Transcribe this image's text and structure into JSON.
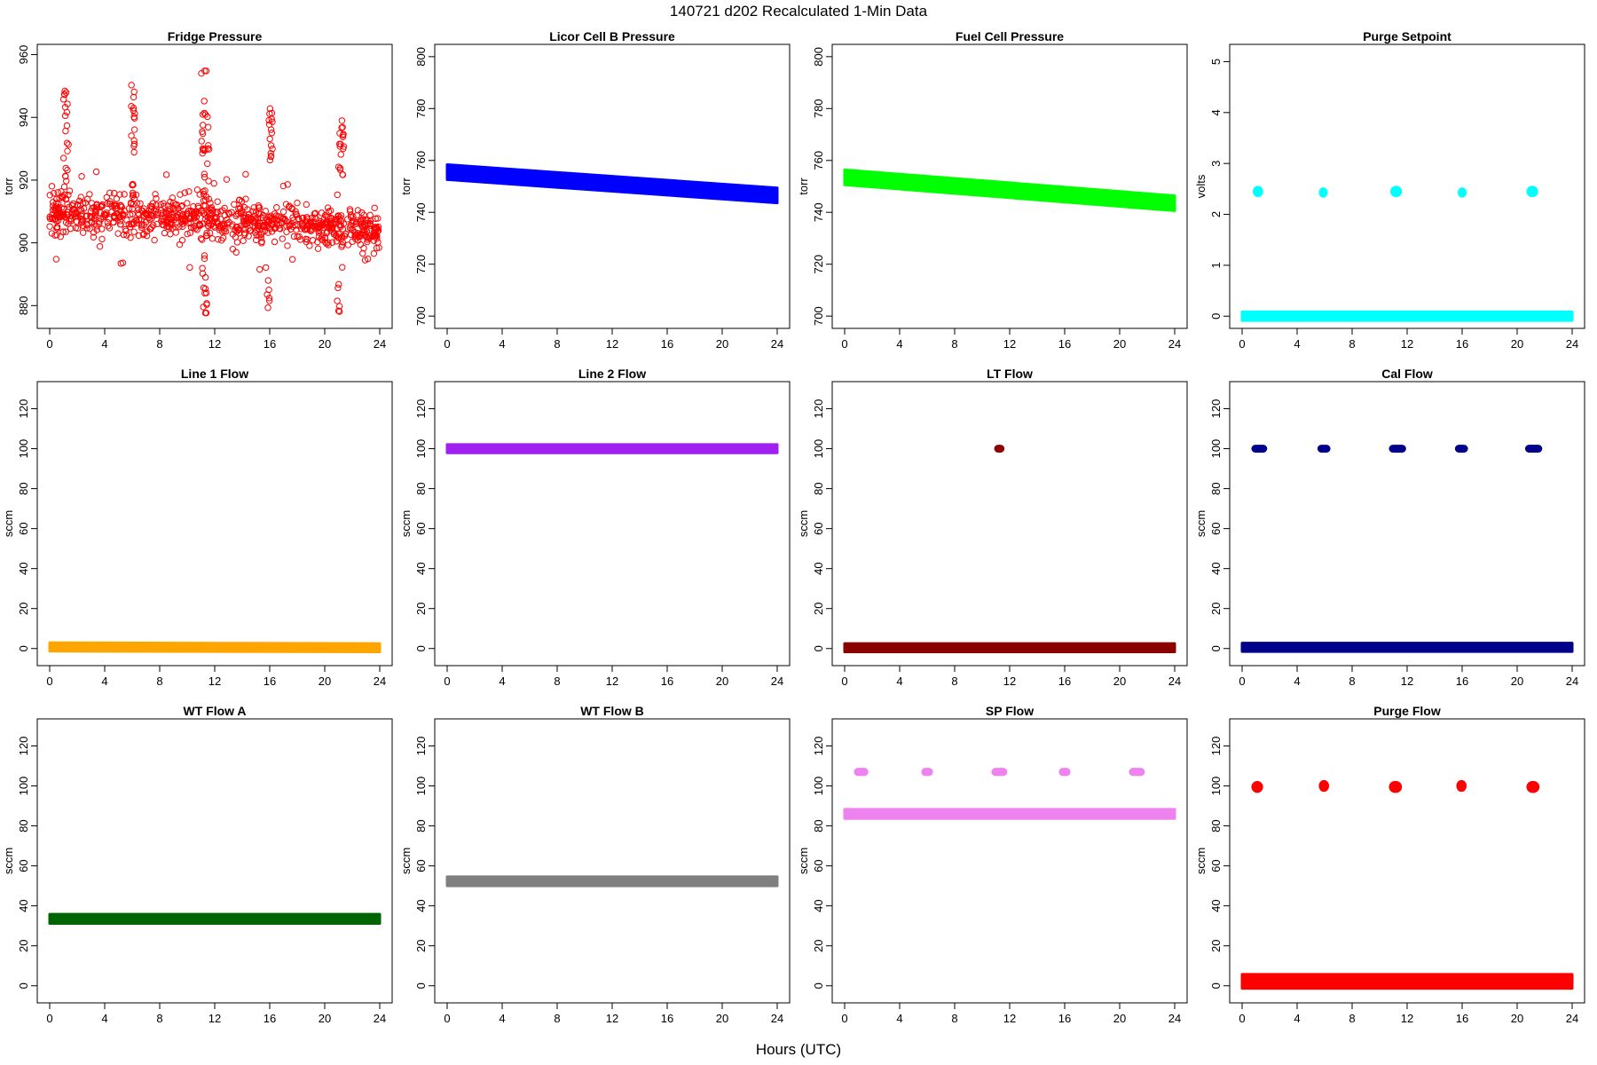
{
  "figure": {
    "title": "140721   d202   Recalculated 1-Min Data",
    "xlabel": "Hours (UTC)"
  },
  "chart_data": [
    {
      "type": "scatter",
      "title": "Fridge Pressure",
      "ylabel": "torr",
      "color": "#ff0000",
      "marker": "open-circle",
      "xlim": [
        0,
        24
      ],
      "ylim": [
        875,
        961
      ],
      "xticks": [
        "0",
        "4",
        "8",
        "12",
        "16",
        "20",
        "24"
      ],
      "yticks": [
        "880",
        "900",
        "920",
        "940",
        "960"
      ],
      "series": [
        {
          "kind": "band",
          "x0": 0,
          "x1": 24,
          "y0": 910,
          "y1": 904,
          "spread": 9,
          "outliers_spread": 16,
          "seed": 11
        },
        {
          "kind": "spike",
          "x": 1.0,
          "x1": 1.4,
          "y0": 908,
          "y1": 950,
          "n": 26,
          "seed": 3
        },
        {
          "kind": "spike",
          "x": 5.9,
          "x1": 6.2,
          "y0": 910,
          "y1": 951,
          "n": 22,
          "seed": 5
        },
        {
          "kind": "spike",
          "x": 11.0,
          "x1": 11.6,
          "y0": 908,
          "y1": 957,
          "n": 34,
          "seed": 7
        },
        {
          "kind": "spike",
          "x": 11.1,
          "x1": 11.5,
          "y0": 875,
          "y1": 898,
          "n": 14,
          "seed": 8
        },
        {
          "kind": "spike",
          "x": 15.9,
          "x1": 16.2,
          "y0": 925,
          "y1": 943,
          "n": 16,
          "seed": 9
        },
        {
          "kind": "spike",
          "x": 15.8,
          "x1": 16.0,
          "y0": 879,
          "y1": 888,
          "n": 6,
          "seed": 10
        },
        {
          "kind": "spike",
          "x": 21.0,
          "x1": 21.4,
          "y0": 920,
          "y1": 939,
          "n": 18,
          "seed": 12
        },
        {
          "kind": "spike",
          "x": 20.9,
          "x1": 21.1,
          "y0": 877,
          "y1": 888,
          "n": 6,
          "seed": 13
        }
      ]
    },
    {
      "type": "scatter",
      "title": "Licor Cell B Pressure",
      "ylabel": "torr",
      "color": "#0000ff",
      "marker": "filled",
      "xlim": [
        0,
        24
      ],
      "ylim": [
        698,
        802
      ],
      "xticks": [
        "0",
        "4",
        "8",
        "12",
        "16",
        "20",
        "24"
      ],
      "yticks": [
        "700",
        "720",
        "740",
        "760",
        "780",
        "800"
      ],
      "series": [
        {
          "kind": "line",
          "x0": 0,
          "x1": 24,
          "y0": 755.5,
          "y1": 746.5,
          "width": 2.2
        }
      ]
    },
    {
      "type": "scatter",
      "title": "Fuel Cell Pressure",
      "ylabel": "torr",
      "color": "#00ff00",
      "marker": "filled",
      "xlim": [
        0,
        24
      ],
      "ylim": [
        698,
        802
      ],
      "xticks": [
        "0",
        "4",
        "8",
        "12",
        "16",
        "20",
        "24"
      ],
      "yticks": [
        "700",
        "720",
        "740",
        "760",
        "780",
        "800"
      ],
      "series": [
        {
          "kind": "line",
          "x0": 0,
          "x1": 24,
          "y0": 753.5,
          "y1": 743.5,
          "width": 2.2
        }
      ]
    },
    {
      "type": "scatter",
      "title": "Purge Setpoint",
      "ylabel": "volts",
      "color": "#00ffff",
      "marker": "filled",
      "xlim": [
        0,
        24
      ],
      "ylim": [
        -0.1,
        5.2
      ],
      "xticks": [
        "0",
        "4",
        "8",
        "12",
        "16",
        "20",
        "24"
      ],
      "yticks": [
        "0",
        "1",
        "2",
        "3",
        "4",
        "5"
      ],
      "series": [
        {
          "kind": "line",
          "x0": 0,
          "x1": 24,
          "y0": 0.0,
          "y1": 0.0,
          "width": 0.05
        },
        {
          "kind": "cluster",
          "x": 1.0,
          "x1": 1.3,
          "y": 2.45,
          "h": 0.05
        },
        {
          "kind": "cluster",
          "x": 5.8,
          "x1": 6.0,
          "y": 2.43,
          "h": 0.04
        },
        {
          "kind": "cluster",
          "x": 11.0,
          "x1": 11.4,
          "y": 2.45,
          "h": 0.05
        },
        {
          "kind": "cluster",
          "x": 15.9,
          "x1": 16.1,
          "y": 2.43,
          "h": 0.04
        },
        {
          "kind": "cluster",
          "x": 20.9,
          "x1": 21.3,
          "y": 2.45,
          "h": 0.05
        }
      ]
    },
    {
      "type": "scatter",
      "title": "Line 1 Flow",
      "ylabel": "sccm",
      "color": "#ffa500",
      "marker": "filled",
      "xlim": [
        0,
        24
      ],
      "ylim": [
        -5,
        130
      ],
      "xticks": [
        "0",
        "4",
        "8",
        "12",
        "16",
        "20",
        "24"
      ],
      "yticks": [
        "0",
        "20",
        "40",
        "60",
        "80",
        "100",
        "120"
      ],
      "series": [
        {
          "kind": "line",
          "x0": 0,
          "x1": 24,
          "y0": 0.8,
          "y1": 0.4,
          "width": 1.2
        }
      ]
    },
    {
      "type": "scatter",
      "title": "Line 2 Flow",
      "ylabel": "sccm",
      "color": "#a020f0",
      "marker": "filled",
      "xlim": [
        0,
        24
      ],
      "ylim": [
        -5,
        130
      ],
      "xticks": [
        "0",
        "4",
        "8",
        "12",
        "16",
        "20",
        "24"
      ],
      "yticks": [
        "0",
        "20",
        "40",
        "60",
        "80",
        "100",
        "120"
      ],
      "series": [
        {
          "kind": "line",
          "x0": 0,
          "x1": 24,
          "y0": 100,
          "y1": 100,
          "width": 1.2
        }
      ]
    },
    {
      "type": "scatter",
      "title": "LT Flow",
      "ylabel": "sccm",
      "color": "#8b0000",
      "marker": "filled",
      "xlim": [
        0,
        24
      ],
      "ylim": [
        -5,
        130
      ],
      "xticks": [
        "0",
        "4",
        "8",
        "12",
        "16",
        "20",
        "24"
      ],
      "yticks": [
        "0",
        "20",
        "40",
        "60",
        "80",
        "100",
        "120"
      ],
      "series": [
        {
          "kind": "line",
          "x0": 0,
          "x1": 24,
          "y0": 0.4,
          "y1": 0.4,
          "width": 1.2
        },
        {
          "kind": "cluster",
          "x": 11.1,
          "x1": 11.4,
          "y": 100,
          "h": 0.4
        }
      ]
    },
    {
      "type": "scatter",
      "title": "Cal Flow",
      "ylabel": "sccm",
      "color": "#00008b",
      "marker": "filled",
      "xlim": [
        0,
        24
      ],
      "ylim": [
        -5,
        130
      ],
      "xticks": [
        "0",
        "4",
        "8",
        "12",
        "16",
        "20",
        "24"
      ],
      "yticks": [
        "0",
        "20",
        "40",
        "60",
        "80",
        "100",
        "120"
      ],
      "series": [
        {
          "kind": "line",
          "x0": 0,
          "x1": 24,
          "y0": 0.6,
          "y1": 0.6,
          "width": 1.2
        },
        {
          "kind": "cluster",
          "x": 0.9,
          "x1": 1.6,
          "y": 100,
          "h": 0.4
        },
        {
          "kind": "cluster",
          "x": 5.7,
          "x1": 6.2,
          "y": 100,
          "h": 0.4
        },
        {
          "kind": "cluster",
          "x": 10.9,
          "x1": 11.7,
          "y": 100,
          "h": 0.4
        },
        {
          "kind": "cluster",
          "x": 15.7,
          "x1": 16.2,
          "y": 100,
          "h": 0.4
        },
        {
          "kind": "cluster",
          "x": 20.8,
          "x1": 21.6,
          "y": 100,
          "h": 0.4
        }
      ]
    },
    {
      "type": "scatter",
      "title": "WT Flow A",
      "ylabel": "sccm",
      "color": "#006400",
      "marker": "filled",
      "xlim": [
        0,
        24
      ],
      "ylim": [
        -5,
        130
      ],
      "xticks": [
        "0",
        "4",
        "8",
        "12",
        "16",
        "20",
        "24"
      ],
      "yticks": [
        "0",
        "20",
        "40",
        "60",
        "80",
        "100",
        "120"
      ],
      "series": [
        {
          "kind": "line",
          "x0": 0,
          "x1": 24,
          "y0": 33.5,
          "y1": 33.5,
          "width": 1.4
        }
      ]
    },
    {
      "type": "scatter",
      "title": "WT Flow B",
      "ylabel": "sccm",
      "color": "#808080",
      "marker": "filled",
      "xlim": [
        0,
        24
      ],
      "ylim": [
        -5,
        130
      ],
      "xticks": [
        "0",
        "4",
        "8",
        "12",
        "16",
        "20",
        "24"
      ],
      "yticks": [
        "0",
        "20",
        "40",
        "60",
        "80",
        "100",
        "120"
      ],
      "series": [
        {
          "kind": "line",
          "x0": 0,
          "x1": 24,
          "y0": 52.3,
          "y1": 52.3,
          "width": 1.4
        }
      ]
    },
    {
      "type": "scatter",
      "title": "SP Flow",
      "ylabel": "sccm",
      "color": "#ee82ee",
      "marker": "filled",
      "xlim": [
        0,
        24
      ],
      "ylim": [
        -5,
        130
      ],
      "xticks": [
        "0",
        "4",
        "8",
        "12",
        "16",
        "20",
        "24"
      ],
      "yticks": [
        "0",
        "20",
        "40",
        "60",
        "80",
        "100",
        "120"
      ],
      "series": [
        {
          "kind": "line",
          "x0": 0,
          "x1": 24,
          "y0": 86,
          "y1": 86,
          "width": 1.4
        },
        {
          "kind": "cluster",
          "x": 0.9,
          "x1": 1.5,
          "y": 107,
          "h": 0.5
        },
        {
          "kind": "cluster",
          "x": 5.8,
          "x1": 6.2,
          "y": 107,
          "h": 0.5
        },
        {
          "kind": "cluster",
          "x": 10.9,
          "x1": 11.6,
          "y": 107,
          "h": 0.5
        },
        {
          "kind": "cluster",
          "x": 15.8,
          "x1": 16.2,
          "y": 107,
          "h": 0.5
        },
        {
          "kind": "cluster",
          "x": 20.9,
          "x1": 21.6,
          "y": 107,
          "h": 0.5
        }
      ]
    },
    {
      "type": "scatter",
      "title": "Purge Flow",
      "ylabel": "sccm",
      "color": "#ff0000",
      "marker": "filled",
      "xlim": [
        0,
        24
      ],
      "ylim": [
        -5,
        130
      ],
      "xticks": [
        "0",
        "4",
        "8",
        "12",
        "16",
        "20",
        "24"
      ],
      "yticks": [
        "0",
        "20",
        "40",
        "60",
        "80",
        "100",
        "120"
      ],
      "series": [
        {
          "kind": "line",
          "x0": 0,
          "x1": 24,
          "y0": 2.2,
          "y1": 2.2,
          "width": 2.6
        },
        {
          "kind": "cluster",
          "x": 0.9,
          "x1": 1.3,
          "y": 99.5,
          "h": 1.4
        },
        {
          "kind": "cluster",
          "x": 5.8,
          "x1": 6.1,
          "y": 100,
          "h": 1.4
        },
        {
          "kind": "cluster",
          "x": 10.9,
          "x1": 11.4,
          "y": 99.5,
          "h": 1.4
        },
        {
          "kind": "cluster",
          "x": 15.8,
          "x1": 16.1,
          "y": 100,
          "h": 1.4
        },
        {
          "kind": "cluster",
          "x": 20.9,
          "x1": 21.4,
          "y": 99.5,
          "h": 1.4
        }
      ]
    }
  ]
}
